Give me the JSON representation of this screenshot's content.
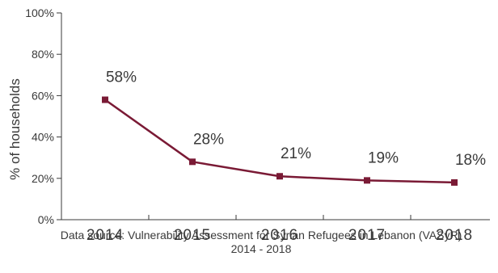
{
  "chart_data": {
    "type": "line",
    "categories": [
      "2014",
      "2015",
      "2016",
      "2017",
      "2018"
    ],
    "series": [
      {
        "values": [
          58,
          28,
          21,
          19,
          18
        ],
        "labels": [
          "58%",
          "28%",
          "21%",
          "19%",
          "18%"
        ],
        "color": "#7a1a35"
      }
    ],
    "ylim": [
      0,
      100
    ],
    "yticks": [
      0,
      20,
      40,
      60,
      80,
      100
    ],
    "ytick_labels": [
      "0%",
      "20%",
      "40%",
      "60%",
      "80%",
      "100%"
    ],
    "ylabel": "% of households",
    "xlabel": "",
    "grid": false,
    "legend": "none",
    "axis_color": "#3a3a3a",
    "text_color": "#3a3a3a"
  },
  "footnote": {
    "line1": "Data source: Vulnerability Assessment for Syrian Refugees in Lebanon (VASyR)",
    "line2": "2014 - 2018"
  }
}
